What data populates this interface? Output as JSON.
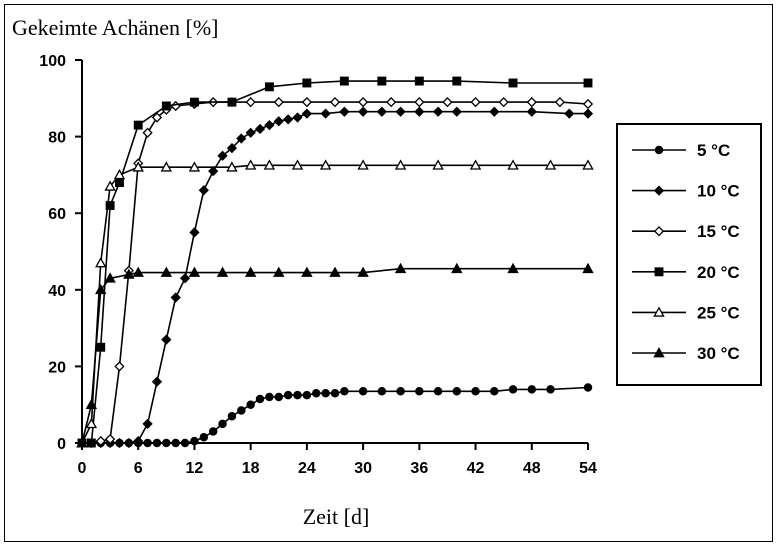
{
  "chart_data": {
    "type": "line",
    "title": "",
    "ylabel": "Gekeimte Achänen [%]",
    "xlabel": "Zeit [d]",
    "xlim": [
      0,
      54
    ],
    "ylim": [
      0,
      100
    ],
    "xticks": [
      0,
      6,
      12,
      18,
      24,
      30,
      36,
      42,
      48,
      54
    ],
    "yticks": [
      0,
      20,
      40,
      60,
      80,
      100
    ],
    "grid": false,
    "legend_position": "right",
    "series": [
      {
        "name": "5 °C",
        "marker": "circle-filled",
        "x": [
          0,
          1,
          2,
          3,
          4,
          5,
          6,
          7,
          8,
          9,
          10,
          11,
          12,
          13,
          14,
          15,
          16,
          17,
          18,
          19,
          20,
          21,
          22,
          23,
          24,
          25,
          26,
          27,
          28,
          30,
          32,
          34,
          36,
          38,
          40,
          42,
          44,
          46,
          48,
          50,
          54
        ],
        "y": [
          0,
          0,
          0,
          0,
          0,
          0,
          0,
          0,
          0,
          0,
          0,
          0,
          0.5,
          1.5,
          3,
          5,
          7,
          8.5,
          10,
          11.5,
          12,
          12,
          12.5,
          12.5,
          12.5,
          13,
          13,
          13,
          13.5,
          13.5,
          13.5,
          13.5,
          13.5,
          13.5,
          13.5,
          13.5,
          13.5,
          14,
          14,
          14,
          14.5
        ]
      },
      {
        "name": "10 °C",
        "marker": "diamond-filled",
        "x": [
          0,
          1,
          2,
          3,
          4,
          5,
          6,
          7,
          8,
          9,
          10,
          11,
          12,
          13,
          14,
          15,
          16,
          17,
          18,
          19,
          20,
          21,
          22,
          23,
          24,
          26,
          28,
          30,
          32,
          34,
          36,
          38,
          40,
          44,
          48,
          52,
          54
        ],
        "y": [
          0,
          0,
          0,
          0,
          0,
          0,
          0.5,
          5,
          16,
          27,
          38,
          43,
          55,
          66,
          71,
          75,
          77,
          79.5,
          81,
          82,
          83,
          84,
          84.5,
          85,
          86,
          86,
          86.5,
          86.5,
          86.5,
          86.5,
          86.5,
          86.5,
          86.5,
          86.5,
          86.5,
          86,
          86
        ]
      },
      {
        "name": "15 °C",
        "marker": "diamond-open",
        "x": [
          0,
          1,
          2,
          3,
          4,
          5,
          6,
          7,
          8,
          9,
          10,
          12,
          14,
          16,
          18,
          21,
          24,
          27,
          30,
          33,
          36,
          39,
          42,
          45,
          48,
          51,
          54
        ],
        "y": [
          0,
          0,
          0.5,
          1,
          20,
          45,
          73,
          81,
          85,
          87,
          88,
          88.5,
          89,
          89,
          89,
          89,
          89,
          89,
          89,
          89,
          89,
          89,
          89,
          89,
          89,
          89,
          88.5
        ]
      },
      {
        "name": "20 °C",
        "marker": "square-filled",
        "x": [
          0,
          1,
          2,
          3,
          4,
          6,
          9,
          12,
          16,
          20,
          24,
          28,
          32,
          36,
          40,
          46,
          54
        ],
        "y": [
          0,
          0,
          25,
          62,
          68,
          83,
          88,
          89,
          89,
          93,
          94,
          94.5,
          94.5,
          94.5,
          94.5,
          94,
          94
        ]
      },
      {
        "name": "25 °C",
        "marker": "triangle-open",
        "x": [
          0,
          1,
          2,
          3,
          4,
          6,
          9,
          12,
          16,
          18,
          20,
          23,
          26,
          30,
          34,
          38,
          42,
          46,
          50,
          54
        ],
        "y": [
          0,
          5,
          47,
          67,
          70,
          72,
          72,
          72,
          72,
          72.5,
          72.5,
          72.5,
          72.5,
          72.5,
          72.5,
          72.5,
          72.5,
          72.5,
          72.5,
          72.5
        ]
      },
      {
        "name": "30 °C",
        "marker": "triangle-filled",
        "x": [
          0,
          1,
          2,
          3,
          5,
          6,
          9,
          12,
          15,
          18,
          21,
          24,
          27,
          30,
          34,
          40,
          46,
          54
        ],
        "y": [
          0,
          10,
          40,
          43,
          44,
          44.5,
          44.5,
          44.5,
          44.5,
          44.5,
          44.5,
          44.5,
          44.5,
          44.5,
          45.5,
          45.5,
          45.5,
          45.5
        ]
      }
    ]
  }
}
